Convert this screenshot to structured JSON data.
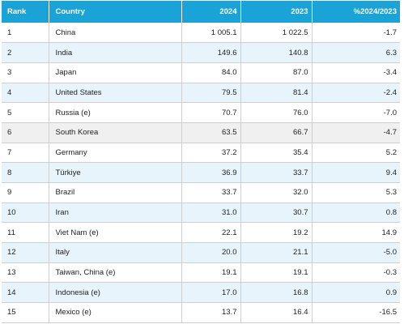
{
  "table": {
    "headers": {
      "rank": "Rank",
      "country": "Country",
      "y2024": "2024",
      "y2023": "2023",
      "pct": "%2024/2023"
    },
    "rows": [
      {
        "rank": "1",
        "country": "China",
        "y2024": "1 005.1",
        "y2023": "1 022.5",
        "pct": "-1.7"
      },
      {
        "rank": "2",
        "country": "India",
        "y2024": "149.6",
        "y2023": "140.8",
        "pct": "6.3"
      },
      {
        "rank": "3",
        "country": "Japan",
        "y2024": "84.0",
        "y2023": "87.0",
        "pct": "-3.4"
      },
      {
        "rank": "4",
        "country": "United States",
        "y2024": "79.5",
        "y2023": "81.4",
        "pct": "-2.4"
      },
      {
        "rank": "5",
        "country": "Russia (e)",
        "y2024": "70.7",
        "y2023": "76.0",
        "pct": "-7.0"
      },
      {
        "rank": "6",
        "country": "South Korea",
        "y2024": "63.5",
        "y2023": "66.7",
        "pct": "-4.7"
      },
      {
        "rank": "7",
        "country": "Germany",
        "y2024": "37.2",
        "y2023": "35.4",
        "pct": "5.2"
      },
      {
        "rank": "8",
        "country": "Türkiye",
        "y2024": "36.9",
        "y2023": "33.7",
        "pct": "9.4"
      },
      {
        "rank": "9",
        "country": "Brazil",
        "y2024": "33.7",
        "y2023": "32.0",
        "pct": "5.3"
      },
      {
        "rank": "10",
        "country": "Iran",
        "y2024": "31.0",
        "y2023": "30.7",
        "pct": "0.8"
      },
      {
        "rank": "11",
        "country": "Viet Nam (e)",
        "y2024": "22.1",
        "y2023": "19.2",
        "pct": "14.9"
      },
      {
        "rank": "12",
        "country": "Italy",
        "y2024": "20.0",
        "y2023": "21.1",
        "pct": "-5.0"
      },
      {
        "rank": "13",
        "country": "Taiwan, China (e)",
        "y2024": "19.1",
        "y2023": "19.1",
        "pct": "-0.3"
      },
      {
        "rank": "14",
        "country": "Indonesia (e)",
        "y2024": "17.0",
        "y2023": "16.8",
        "pct": "0.9"
      },
      {
        "rank": "15",
        "country": "Mexico (e)",
        "y2024": "13.7",
        "y2023": "16.4",
        "pct": "-16.5"
      }
    ]
  },
  "colors": {
    "header_bg": "#19a3d6",
    "header_text": "#ffffff",
    "row_alt_bg": "#e8f4fb",
    "row_highlight_bg": "#f0f0f0",
    "border": "#cfcfcf"
  }
}
